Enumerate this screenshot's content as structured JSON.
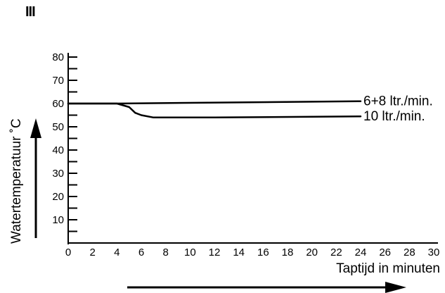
{
  "figure_marker": "III",
  "chart_data": {
    "type": "line",
    "title": "",
    "xlabel": "Taptijd in minuten",
    "ylabel": "Watertemperatuur ˚C",
    "xlim": [
      0,
      30
    ],
    "ylim": [
      0,
      80
    ],
    "x_ticks": [
      0,
      2,
      4,
      6,
      8,
      10,
      12,
      14,
      16,
      18,
      20,
      22,
      24,
      26,
      28,
      30
    ],
    "y_ticks": [
      10,
      20,
      30,
      40,
      50,
      60,
      70,
      80
    ],
    "grid": false,
    "series": [
      {
        "name": "6+8 ltr./min.",
        "x": [
          0,
          4,
          24
        ],
        "y": [
          60,
          60,
          61
        ]
      },
      {
        "name": "10 ltr./min.",
        "x": [
          0,
          4,
          5,
          5.5,
          6,
          7,
          12,
          24
        ],
        "y": [
          60,
          60,
          58.5,
          56,
          55,
          54,
          54,
          54.5
        ]
      }
    ]
  }
}
